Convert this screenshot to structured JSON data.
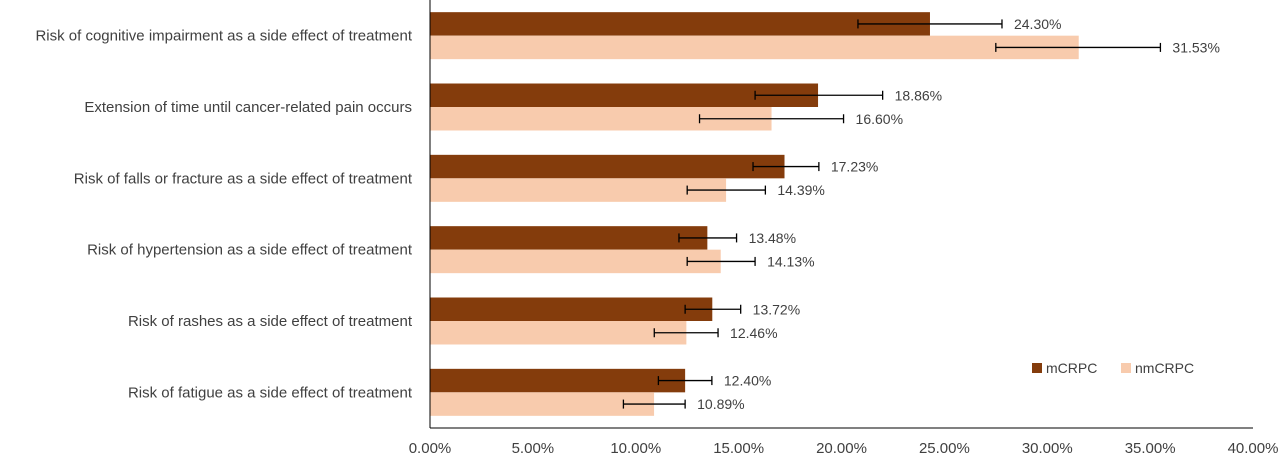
{
  "chart_data": {
    "type": "bar",
    "orientation": "horizontal",
    "categories": [
      "Risk of cognitive impairment as a side effect of treatment",
      "Extension of time until cancer-related pain occurs",
      "Risk of falls or fracture as a side effect of treatment",
      "Risk of hypertension as a side effect of treatment",
      "Risk of rashes as a side effect of treatment",
      "Risk of fatigue as a side effect of treatment"
    ],
    "series": [
      {
        "name": "mCRPC",
        "color": "#843C0C",
        "values": [
          24.3,
          18.86,
          17.23,
          13.48,
          13.72,
          12.4
        ],
        "labels": [
          "24.30%",
          "18.86%",
          "17.23%",
          "13.48%",
          "13.72%",
          "12.40%"
        ],
        "error_low": [
          20.8,
          15.8,
          15.7,
          12.1,
          12.4,
          11.1
        ],
        "error_high": [
          27.8,
          22.0,
          18.9,
          14.9,
          15.1,
          13.7
        ]
      },
      {
        "name": "nmCRPC",
        "color": "#F8CBAD",
        "values": [
          31.53,
          16.6,
          14.39,
          14.13,
          12.46,
          10.89
        ],
        "labels": [
          "31.53%",
          "16.60%",
          "14.39%",
          "14.13%",
          "12.46%",
          "10.89%"
        ],
        "error_low": [
          27.5,
          13.1,
          12.5,
          12.5,
          10.9,
          9.4
        ],
        "error_high": [
          35.5,
          20.1,
          16.3,
          15.8,
          14.0,
          12.4
        ]
      }
    ],
    "xlim": [
      0,
      40
    ],
    "xticks": [
      "0.00%",
      "5.00%",
      "10.00%",
      "15.00%",
      "20.00%",
      "25.00%",
      "30.00%",
      "35.00%",
      "40.00%"
    ],
    "xlabel": "",
    "ylabel": "",
    "title": "",
    "grid": false,
    "legend_position": "bottom-right"
  }
}
